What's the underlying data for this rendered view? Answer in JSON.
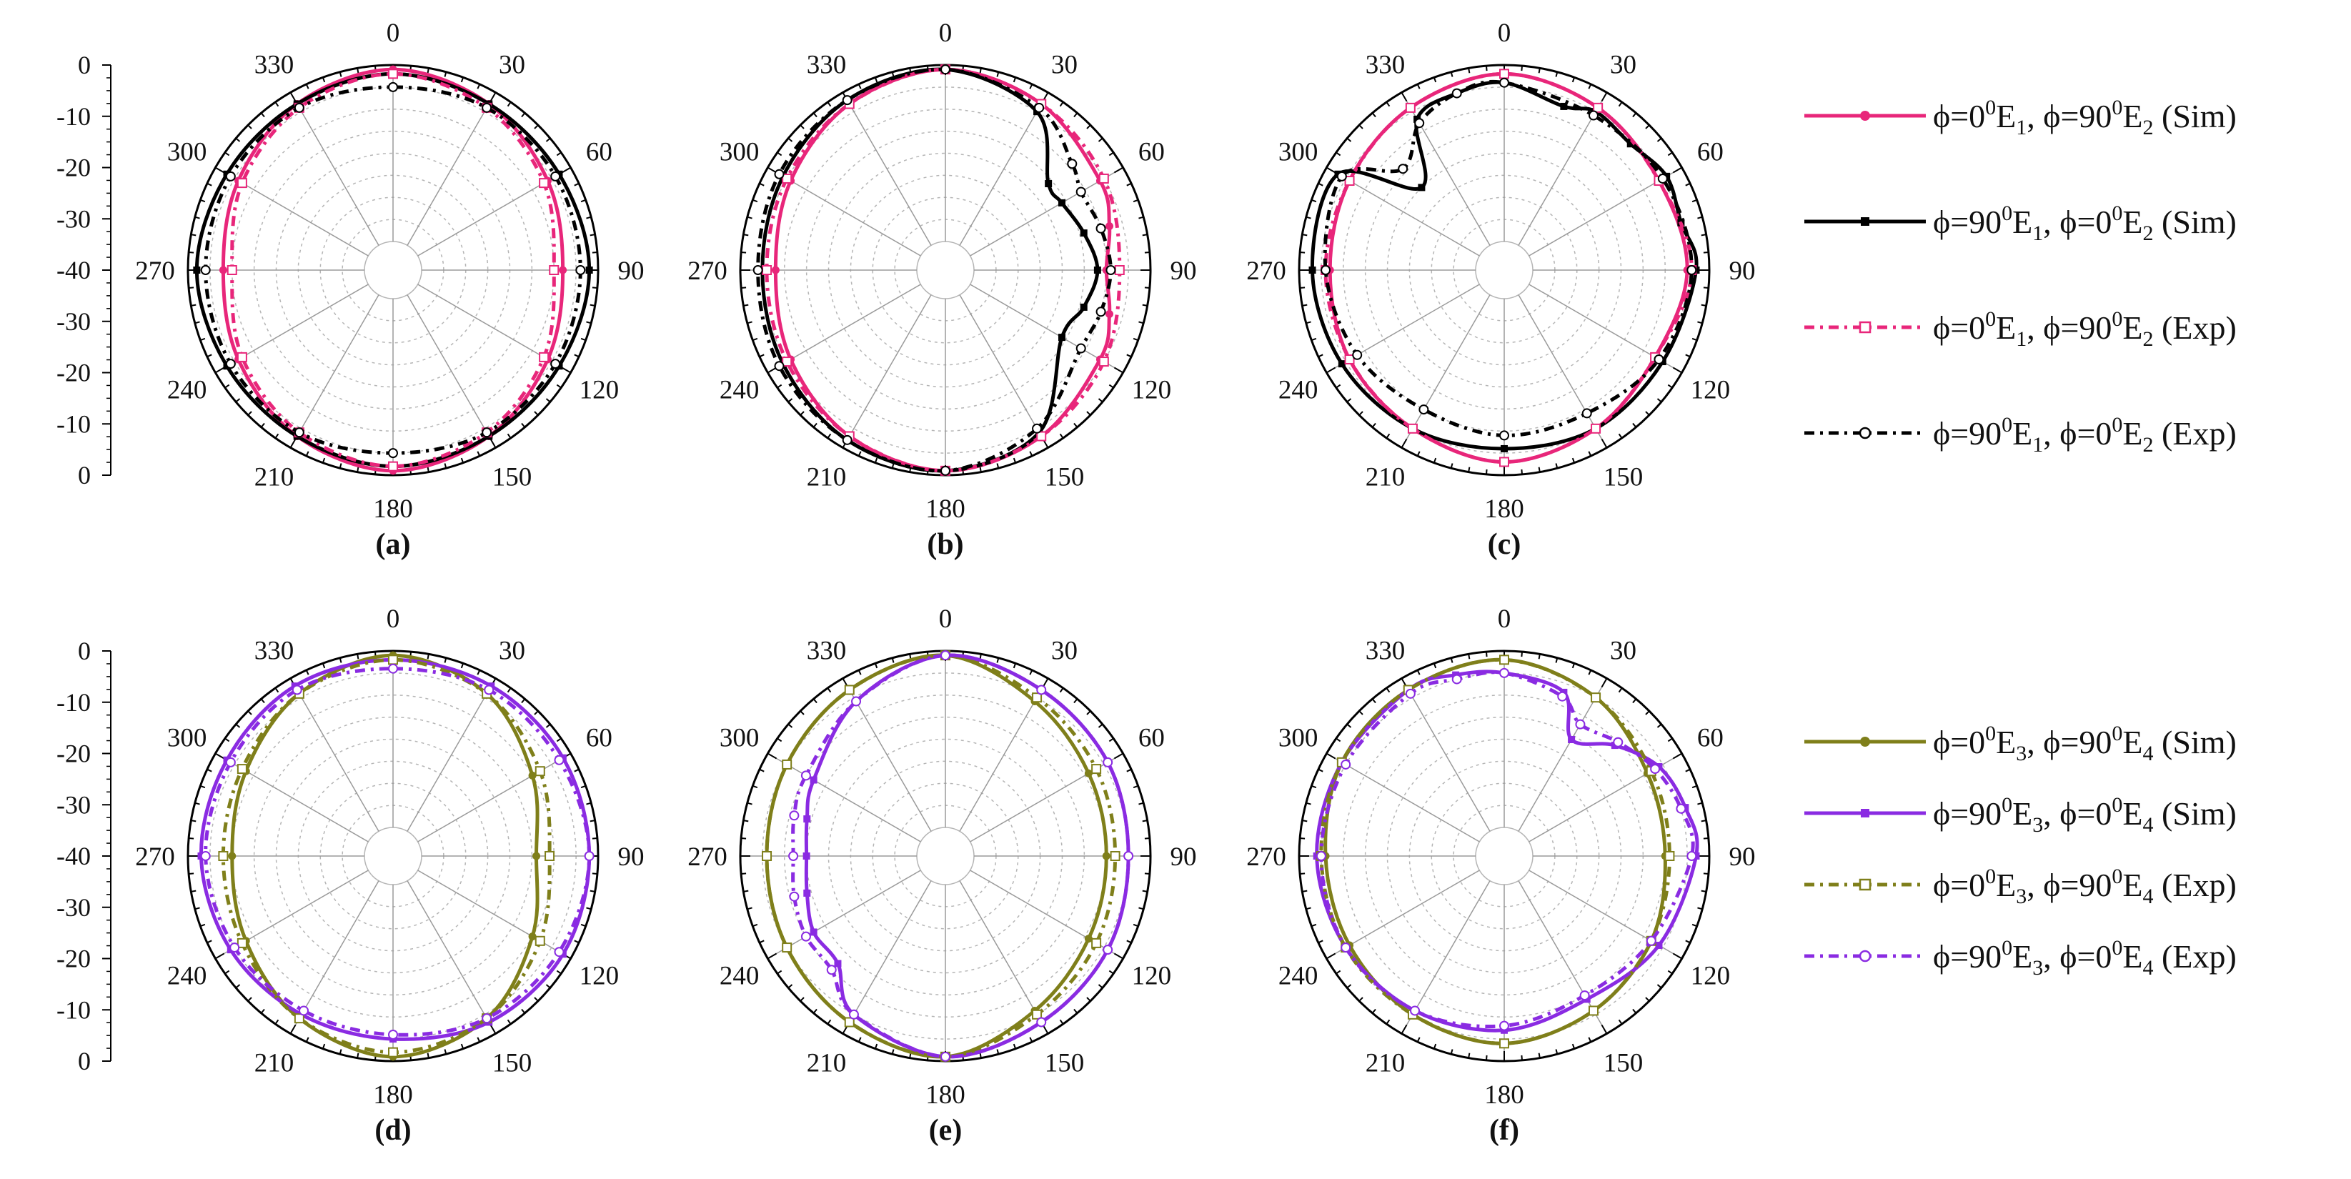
{
  "chart_data": [
    {
      "type": "polar-line",
      "panel_label": "(a)",
      "theta_tick_labels": [
        "0",
        "30",
        "60",
        "90",
        "120",
        "150",
        "180",
        "210",
        "240",
        "270",
        "300",
        "330"
      ],
      "r_tick_labels": [
        "0",
        "-10",
        "-20",
        "-30",
        "-40",
        "-30",
        "-20",
        "-10",
        "0"
      ],
      "r_range_db": [
        -40,
        0
      ],
      "grid": true,
      "series": [
        {
          "angles": [
            0,
            30,
            60,
            90,
            120,
            150,
            180,
            210,
            240,
            270,
            300,
            330
          ],
          "values": [
            -1,
            -3,
            -6,
            -8,
            -6,
            -3,
            -1,
            -3,
            -6,
            -8,
            -6,
            -3
          ]
        },
        {
          "angles": [
            0,
            30,
            60,
            90,
            120,
            150,
            180,
            210,
            240,
            270,
            300,
            330
          ],
          "values": [
            -2,
            -3,
            -3,
            -2,
            -3,
            -3,
            -2,
            -3,
            -3,
            -2,
            -3,
            -3
          ]
        },
        {
          "angles": [
            0,
            30,
            60,
            90,
            120,
            150,
            180,
            210,
            240,
            270,
            300,
            330
          ],
          "values": [
            -2,
            -4,
            -7,
            -10,
            -7,
            -4,
            -2,
            -4,
            -7,
            -10,
            -7,
            -4
          ]
        },
        {
          "angles": [
            0,
            30,
            60,
            90,
            120,
            150,
            180,
            210,
            240,
            270,
            300,
            330
          ],
          "values": [
            -5,
            -4,
            -4,
            -4,
            -4,
            -4,
            -5,
            -4,
            -4,
            -4,
            -4,
            -4
          ]
        }
      ]
    },
    {
      "type": "polar-line",
      "panel_label": "(b)",
      "theta_tick_labels": [
        "0",
        "30",
        "60",
        "90",
        "120",
        "150",
        "180",
        "210",
        "240",
        "270",
        "300",
        "330"
      ],
      "r_tick_labels": [],
      "r_range_db": [
        -40,
        0
      ],
      "grid": true,
      "series": [
        {
          "angles": [
            0,
            30,
            60,
            75,
            90,
            105,
            120,
            150,
            180,
            210,
            240,
            270,
            300,
            330
          ],
          "values": [
            -1,
            -3,
            -6,
            -8,
            -10,
            -8,
            -6,
            -3,
            -1,
            -3,
            -6,
            -8,
            -6,
            -3
          ]
        },
        {
          "angles": [
            0,
            30,
            50,
            60,
            75,
            90,
            105,
            120,
            150,
            180,
            210,
            240,
            270,
            300,
            330
          ],
          "values": [
            -1,
            -5,
            -16,
            -16,
            -14,
            -12,
            -14,
            -16,
            -4,
            -1,
            -2,
            -4,
            -5,
            -4,
            -2
          ]
        },
        {
          "angles": [
            0,
            30,
            60,
            90,
            120,
            150,
            180,
            210,
            240,
            270,
            300,
            330
          ],
          "values": [
            -1,
            -3,
            -5,
            -7,
            -5,
            -3,
            -1,
            -3,
            -5,
            -6,
            -5,
            -3
          ]
        },
        {
          "angles": [
            0,
            30,
            50,
            60,
            75,
            90,
            105,
            120,
            150,
            180,
            210,
            240,
            270,
            300,
            330
          ],
          "values": [
            -1,
            -4,
            -9,
            -11,
            -10,
            -9,
            -10,
            -11,
            -5,
            -1,
            -2,
            -3,
            -4,
            -3,
            -2
          ]
        }
      ]
    },
    {
      "type": "polar-line",
      "panel_label": "(c)",
      "theta_tick_labels": [
        "0",
        "30",
        "60",
        "90",
        "120",
        "150",
        "180",
        "210",
        "240",
        "270",
        "300",
        "330"
      ],
      "r_tick_labels": [],
      "r_range_db": [
        -40,
        0
      ],
      "grid": true,
      "series": [
        {
          "angles": [
            0,
            30,
            60,
            90,
            120,
            150,
            180,
            210,
            240,
            270,
            300,
            330
          ],
          "values": [
            -2,
            -4,
            -6,
            -5,
            -7,
            -5,
            -3,
            -5,
            -6,
            -7,
            -6,
            -4
          ]
        },
        {
          "angles": [
            0,
            20,
            30,
            45,
            60,
            75,
            90,
            120,
            150,
            180,
            210,
            240,
            270,
            300,
            315,
            330,
            345
          ],
          "values": [
            -4,
            -7,
            -5,
            -6,
            -4,
            -5,
            -3,
            -5,
            -5,
            -6,
            -5,
            -4,
            -3,
            -3,
            -20,
            -7,
            -5
          ]
        },
        {
          "angles": [
            0,
            30,
            60,
            90,
            120,
            150,
            180,
            210,
            240,
            270,
            300,
            330
          ],
          "values": [
            -2,
            -4,
            -6,
            -4,
            -7,
            -5,
            -3,
            -5,
            -6,
            -6,
            -6,
            -4
          ]
        },
        {
          "angles": [
            0,
            30,
            60,
            90,
            120,
            150,
            180,
            210,
            240,
            270,
            300,
            315,
            330,
            345
          ],
          "values": [
            -4,
            -6,
            -5,
            -4,
            -6,
            -9,
            -9,
            -10,
            -8,
            -6,
            -4,
            -14,
            -8,
            -5
          ]
        }
      ]
    },
    {
      "type": "polar-line",
      "panel_label": "(d)",
      "theta_tick_labels": [
        "0",
        "30",
        "60",
        "90",
        "120",
        "150",
        "180",
        "210",
        "240",
        "270",
        "300",
        "330"
      ],
      "r_tick_labels": [
        "0",
        "-10",
        "-20",
        "-30",
        "-40",
        "-30",
        "-20",
        "-10",
        "0"
      ],
      "r_range_db": [
        -40,
        0
      ],
      "grid": true,
      "series": [
        {
          "angles": [
            0,
            30,
            60,
            90,
            120,
            150,
            180,
            210,
            240,
            270,
            300,
            330
          ],
          "values": [
            -1,
            -4,
            -10,
            -14,
            -10,
            -4,
            -1,
            -4,
            -8,
            -10,
            -8,
            -4
          ]
        },
        {
          "angles": [
            0,
            30,
            60,
            90,
            120,
            150,
            180,
            210,
            240,
            270,
            300,
            330
          ],
          "values": [
            -2,
            -2,
            -2,
            -2,
            -2,
            -3,
            -5,
            -5,
            -4,
            -3,
            -3,
            -2
          ]
        },
        {
          "angles": [
            0,
            30,
            60,
            90,
            120,
            150,
            180,
            210,
            240,
            270,
            300,
            330
          ],
          "values": [
            -2,
            -4,
            -8,
            -11,
            -8,
            -4,
            -2,
            -4,
            -7,
            -8,
            -7,
            -4
          ]
        },
        {
          "angles": [
            0,
            30,
            60,
            90,
            120,
            150,
            180,
            210,
            240,
            270,
            300,
            330
          ],
          "values": [
            -4,
            -3,
            -3,
            -2,
            -3,
            -4,
            -6,
            -6,
            -5,
            -4,
            -4,
            -3
          ]
        }
      ]
    },
    {
      "type": "polar-line",
      "panel_label": "(e)",
      "theta_tick_labels": [
        "0",
        "30",
        "60",
        "90",
        "120",
        "150",
        "180",
        "210",
        "240",
        "270",
        "300",
        "330"
      ],
      "r_tick_labels": [],
      "r_range_db": [
        -40,
        0
      ],
      "grid": true,
      "series": [
        {
          "angles": [
            0,
            30,
            60,
            90,
            120,
            150,
            180,
            210,
            240,
            270,
            300,
            330
          ],
          "values": [
            -1,
            -6,
            -9,
            -10,
            -9,
            -6,
            -1,
            -3,
            -5,
            -6,
            -5,
            -3
          ]
        },
        {
          "angles": [
            0,
            30,
            60,
            90,
            120,
            150,
            180,
            210,
            225,
            240,
            255,
            270,
            285,
            300,
            330
          ],
          "values": [
            -1,
            -3,
            -4,
            -5,
            -4,
            -3,
            -1,
            -5,
            -12,
            -12,
            -14,
            -15,
            -14,
            -12,
            -6
          ]
        },
        {
          "angles": [
            0,
            30,
            60,
            90,
            120,
            150,
            180,
            210,
            240,
            270,
            300,
            330
          ],
          "values": [
            -1,
            -5,
            -7,
            -8,
            -7,
            -5,
            -1,
            -3,
            -5,
            -6,
            -5,
            -3
          ]
        },
        {
          "angles": [
            0,
            30,
            60,
            90,
            120,
            150,
            180,
            210,
            225,
            240,
            255,
            270,
            285,
            300,
            330
          ],
          "values": [
            -1,
            -3,
            -4,
            -5,
            -4,
            -3,
            -1,
            -5,
            -10,
            -10,
            -11,
            -12,
            -11,
            -10,
            -6
          ]
        }
      ]
    },
    {
      "type": "polar-line",
      "panel_label": "(f)",
      "theta_tick_labels": [
        "0",
        "30",
        "60",
        "90",
        "120",
        "150",
        "180",
        "210",
        "240",
        "270",
        "300",
        "330"
      ],
      "r_tick_labels": [],
      "r_range_db": [
        -40,
        0
      ],
      "grid": true,
      "series": [
        {
          "angles": [
            0,
            30,
            60,
            90,
            120,
            150,
            180,
            210,
            240,
            270,
            300,
            330
          ],
          "values": [
            -2,
            -5,
            -9,
            -10,
            -8,
            -6,
            -4,
            -5,
            -6,
            -6,
            -4,
            -3
          ]
        },
        {
          "angles": [
            0,
            20,
            30,
            45,
            60,
            75,
            90,
            120,
            150,
            180,
            210,
            240,
            270,
            300,
            330,
            345
          ],
          "values": [
            -5,
            -7,
            -16,
            -11,
            -6,
            -4,
            -3,
            -6,
            -9,
            -7,
            -6,
            -5,
            -4,
            -4,
            -3,
            -4
          ]
        },
        {
          "angles": [
            0,
            30,
            60,
            90,
            120,
            150,
            180,
            210,
            240,
            270,
            300,
            330
          ],
          "values": [
            -2,
            -5,
            -8,
            -9,
            -8,
            -6,
            -4,
            -5,
            -5,
            -5,
            -4,
            -3
          ]
        },
        {
          "angles": [
            0,
            20,
            30,
            45,
            60,
            75,
            90,
            120,
            150,
            180,
            210,
            240,
            270,
            300,
            330,
            345
          ],
          "values": [
            -5,
            -8,
            -12,
            -10,
            -7,
            -5,
            -4,
            -8,
            -10,
            -8,
            -6,
            -5,
            -5,
            -5,
            -4,
            -5
          ]
        }
      ]
    }
  ],
  "legend_top": [
    {
      "text_a": "ϕ=0",
      "sup_a": "0",
      "text_b": "E",
      "sub_b": "1",
      "text_c": ", ϕ=90",
      "sup_c": "0",
      "text_d": "E",
      "sub_d": "2",
      "text_e": " (Sim)",
      "color": "#e8267a",
      "dash": "",
      "marker": "dot"
    },
    {
      "text_a": "ϕ=90",
      "sup_a": "0",
      "text_b": "E",
      "sub_b": "1",
      "text_c": ", ϕ=0",
      "sup_c": "0",
      "text_d": "E",
      "sub_d": "2",
      "text_e": " (Sim)",
      "color": "#000000",
      "dash": "",
      "marker": "square"
    },
    {
      "text_a": "ϕ=0",
      "sup_a": "0",
      "text_b": "E",
      "sub_b": "1",
      "text_c": ", ϕ=90",
      "sup_c": "0",
      "text_d": "E",
      "sub_d": "2",
      "text_e": " (Exp)",
      "color": "#e8267a",
      "dash": "14 8 4 8",
      "marker": "open-square"
    },
    {
      "text_a": "ϕ=90",
      "sup_a": "0",
      "text_b": "E",
      "sub_b": "1",
      "text_c": ", ϕ=0",
      "sup_c": "0",
      "text_d": "E",
      "sub_d": "2",
      "text_e": " (Exp)",
      "color": "#000000",
      "dash": "14 8 4 8",
      "marker": "open-circle"
    }
  ],
  "legend_bottom": [
    {
      "text_a": "ϕ=0",
      "sup_a": "0",
      "text_b": "E",
      "sub_b": "3",
      "text_c": ", ϕ=90",
      "sup_c": "0",
      "text_d": "E",
      "sub_d": "4",
      "text_e": " (Sim)",
      "color": "#7f7f1a",
      "dash": "",
      "marker": "dot"
    },
    {
      "text_a": "ϕ=90",
      "sup_a": "0",
      "text_b": "E",
      "sub_b": "3",
      "text_c": ", ϕ=0",
      "sup_c": "0",
      "text_d": "E",
      "sub_d": "4",
      "text_e": " (Sim)",
      "color": "#8a2be2",
      "dash": "",
      "marker": "square"
    },
    {
      "text_a": "ϕ=0",
      "sup_a": "0",
      "text_b": "E",
      "sub_b": "3",
      "text_c": ", ϕ=90",
      "sup_c": "0",
      "text_d": "E",
      "sub_d": "4",
      "text_e": " (Exp)",
      "color": "#7f7f1a",
      "dash": "14 8 4 8",
      "marker": "open-square"
    },
    {
      "text_a": "ϕ=90",
      "sup_a": "0",
      "text_b": "E",
      "sub_b": "3",
      "text_c": ", ϕ=0",
      "sup_c": "0",
      "text_d": "E",
      "sub_d": "4",
      "text_e": " (Exp)",
      "color": "#8a2be2",
      "dash": "14 8 4 8",
      "marker": "open-circle"
    }
  ],
  "series_styles_top": [
    {
      "color": "#e8267a",
      "dash": "",
      "marker": "dot"
    },
    {
      "color": "#000000",
      "dash": "",
      "marker": "square"
    },
    {
      "color": "#e8267a",
      "dash": "14 8 4 8",
      "marker": "open-square"
    },
    {
      "color": "#000000",
      "dash": "14 8 4 8",
      "marker": "open-circle"
    }
  ],
  "series_styles_bottom": [
    {
      "color": "#7f7f1a",
      "dash": "",
      "marker": "dot"
    },
    {
      "color": "#8a2be2",
      "dash": "",
      "marker": "square"
    },
    {
      "color": "#7f7f1a",
      "dash": "14 8 4 8",
      "marker": "open-square"
    },
    {
      "color": "#8a2be2",
      "dash": "14 8 4 8",
      "marker": "open-circle"
    }
  ]
}
